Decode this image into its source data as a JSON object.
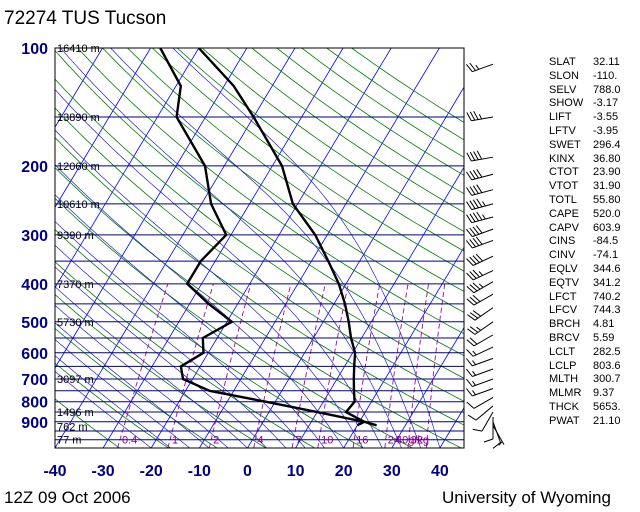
{
  "header": {
    "station_title": "72274 TUS Tucson"
  },
  "footer": {
    "date_label": "12Z 09 Oct 2006",
    "credit": "University of Wyoming"
  },
  "colors": {
    "axis_text": "#000080",
    "isobar": "#000080",
    "isotherm": "#0000ff",
    "dry_adiabat": "#008000",
    "moist_adiabat": "#2222cc",
    "mixing_ratio": "#aa00aa",
    "profile": "#000000"
  },
  "chart_data": {
    "type": "line",
    "title": "",
    "xlabel": "",
    "ylabel": "",
    "xlim": [
      -40,
      45
    ],
    "pressure_range": [
      100,
      1050
    ],
    "x_ticks": [
      "-40",
      "-30",
      "-20",
      "-10",
      "0",
      "10",
      "20",
      "30",
      "40"
    ],
    "pressure_ticks": [
      {
        "p": 100,
        "label": "100"
      },
      {
        "p": 200,
        "label": "200"
      },
      {
        "p": 300,
        "label": "300"
      },
      {
        "p": 400,
        "label": "400"
      },
      {
        "p": 500,
        "label": "500"
      },
      {
        "p": 600,
        "label": "600"
      },
      {
        "p": 700,
        "label": "700"
      },
      {
        "p": 800,
        "label": "800"
      },
      {
        "p": 900,
        "label": "900"
      }
    ],
    "height_labels": [
      {
        "p": 100,
        "label": "16410 m"
      },
      {
        "p": 150,
        "label": "13890 m"
      },
      {
        "p": 200,
        "label": "12060 m"
      },
      {
        "p": 250,
        "label": "10610 m"
      },
      {
        "p": 300,
        "label": "9390 m"
      },
      {
        "p": 400,
        "label": "7370 m"
      },
      {
        "p": 500,
        "label": "5730 m"
      },
      {
        "p": 700,
        "label": "3097 m"
      },
      {
        "p": 850,
        "label": "1496 m"
      },
      {
        "p": 925,
        "label": "762 m"
      },
      {
        "p": 1000,
        "label": "77 m"
      }
    ],
    "mixing_ratio_labels": [
      "0.4",
      "1",
      "2",
      "4",
      "7",
      "10",
      "16",
      "24",
      "32",
      "40g/kg"
    ],
    "series": [
      {
        "values": [
          [
            919,
            24
          ],
          [
            900,
            21
          ],
          [
            850,
            16
          ],
          [
            800,
            16.5
          ],
          [
            750,
            15
          ],
          [
            700,
            13.5
          ],
          [
            650,
            12
          ],
          [
            600,
            10.5
          ],
          [
            550,
            7.8
          ],
          [
            500,
            5.3
          ],
          [
            450,
            2.3
          ],
          [
            400,
            -1.5
          ],
          [
            350,
            -6.5
          ],
          [
            300,
            -12.5
          ],
          [
            250,
            -21
          ],
          [
            200,
            -28
          ],
          [
            150,
            -40
          ],
          [
            125,
            -48
          ],
          [
            100,
            -60
          ]
        ]
      },
      {
        "values": [
          [
            919,
            20
          ],
          [
            900,
            21
          ],
          [
            850,
            10
          ],
          [
            800,
            -2
          ],
          [
            750,
            -15
          ],
          [
            700,
            -22
          ],
          [
            650,
            -24
          ],
          [
            600,
            -21
          ],
          [
            550,
            -23
          ],
          [
            500,
            -19
          ],
          [
            450,
            -26
          ],
          [
            400,
            -33
          ],
          [
            350,
            -33
          ],
          [
            300,
            -31
          ],
          [
            250,
            -38
          ],
          [
            200,
            -44
          ],
          [
            150,
            -56
          ],
          [
            125,
            -59
          ],
          [
            100,
            -68
          ]
        ]
      }
    ],
    "winds": [
      {
        "p": 920,
        "dir": 150,
        "spd": 5
      },
      {
        "p": 900,
        "dir": 160,
        "spd": 10
      },
      {
        "p": 875,
        "dir": 180,
        "spd": 10
      },
      {
        "p": 850,
        "dir": 210,
        "spd": 10
      },
      {
        "p": 820,
        "dir": 230,
        "spd": 10
      },
      {
        "p": 780,
        "dir": 240,
        "spd": 10
      },
      {
        "p": 740,
        "dir": 250,
        "spd": 15
      },
      {
        "p": 700,
        "dir": 250,
        "spd": 15
      },
      {
        "p": 660,
        "dir": 250,
        "spd": 15
      },
      {
        "p": 620,
        "dir": 250,
        "spd": 15
      },
      {
        "p": 580,
        "dir": 245,
        "spd": 15
      },
      {
        "p": 540,
        "dir": 240,
        "spd": 20
      },
      {
        "p": 500,
        "dir": 235,
        "spd": 25
      },
      {
        "p": 460,
        "dir": 235,
        "spd": 30
      },
      {
        "p": 425,
        "dir": 240,
        "spd": 30
      },
      {
        "p": 395,
        "dir": 240,
        "spd": 35
      },
      {
        "p": 370,
        "dir": 245,
        "spd": 35
      },
      {
        "p": 340,
        "dir": 245,
        "spd": 40
      },
      {
        "p": 310,
        "dir": 250,
        "spd": 40
      },
      {
        "p": 290,
        "dir": 250,
        "spd": 40
      },
      {
        "p": 270,
        "dir": 255,
        "spd": 45
      },
      {
        "p": 250,
        "dir": 255,
        "spd": 45
      },
      {
        "p": 230,
        "dir": 255,
        "spd": 40
      },
      {
        "p": 210,
        "dir": 255,
        "spd": 40
      },
      {
        "p": 190,
        "dir": 260,
        "spd": 40
      },
      {
        "p": 150,
        "dir": 260,
        "spd": 35
      },
      {
        "p": 110,
        "dir": 250,
        "spd": 25
      }
    ]
  },
  "indices": [
    {
      "name": "SLAT",
      "value": "32.11"
    },
    {
      "name": "SLON",
      "value": "-110."
    },
    {
      "name": "SELV",
      "value": "788.0"
    },
    {
      "name": "SHOW",
      "value": "-3.17"
    },
    {
      "name": "LIFT",
      "value": "-3.55"
    },
    {
      "name": "LFTV",
      "value": "-3.95"
    },
    {
      "name": "SWET",
      "value": "296.4"
    },
    {
      "name": "KINX",
      "value": "36.80"
    },
    {
      "name": "CTOT",
      "value": "23.90"
    },
    {
      "name": "VTOT",
      "value": "31.90"
    },
    {
      "name": "TOTL",
      "value": "55.80"
    },
    {
      "name": "CAPE",
      "value": "520.0"
    },
    {
      "name": "CAPV",
      "value": "603.9"
    },
    {
      "name": "CINS",
      "value": "-84.5"
    },
    {
      "name": "CINV",
      "value": "-74.1"
    },
    {
      "name": "EQLV",
      "value": "344.6"
    },
    {
      "name": "EQTV",
      "value": "341.2"
    },
    {
      "name": "LFCT",
      "value": "740.2"
    },
    {
      "name": "LFCV",
      "value": "744.3"
    },
    {
      "name": "BRCH",
      "value": "4.81"
    },
    {
      "name": "BRCV",
      "value": "5.59"
    },
    {
      "name": "LCLT",
      "value": "282.5"
    },
    {
      "name": "LCLP",
      "value": "803.6"
    },
    {
      "name": "MLTH",
      "value": "300.7"
    },
    {
      "name": "MLMR",
      "value": "9.37"
    },
    {
      "name": "THCK",
      "value": "5653."
    },
    {
      "name": "PWAT",
      "value": "21.10"
    }
  ]
}
